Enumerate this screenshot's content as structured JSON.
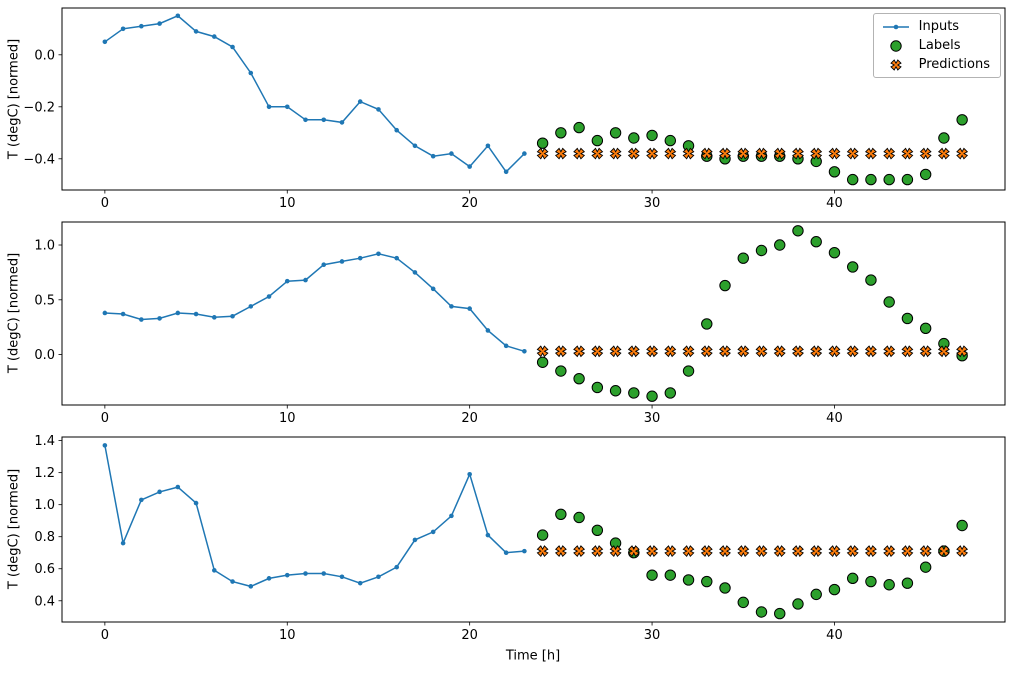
{
  "figure": {
    "background": "#ffffff",
    "xlabel": "Time [h]",
    "legend": {
      "items": [
        {
          "label": "Inputs"
        },
        {
          "label": "Labels"
        },
        {
          "label": "Predictions"
        }
      ]
    },
    "colors": {
      "inputs": "#1f77b4",
      "labels": "#2ca02c",
      "predictions": "#ff7f0e",
      "marker_edge": "#000000"
    }
  },
  "chart_data": [
    {
      "type": "line",
      "title": "",
      "ylabel": "T (degC) [normed]",
      "xlim": [
        -2.35,
        49.35
      ],
      "ylim": [
        -0.52,
        0.18
      ],
      "xticks": [
        0,
        10,
        20,
        30,
        40
      ],
      "yticks": [
        0.0,
        -0.2,
        -0.4
      ],
      "grid": false,
      "legend_position": "upper right",
      "series": [
        {
          "name": "Inputs",
          "style": "line",
          "color": "#1f77b4",
          "x": [
            0,
            1,
            2,
            3,
            4,
            5,
            6,
            7,
            8,
            9,
            10,
            11,
            12,
            13,
            14,
            15,
            16,
            17,
            18,
            19,
            20,
            21,
            22,
            23
          ],
          "y": [
            0.05,
            0.1,
            0.11,
            0.12,
            0.15,
            0.09,
            0.07,
            0.03,
            -0.07,
            -0.2,
            -0.2,
            -0.25,
            -0.25,
            -0.26,
            -0.18,
            -0.21,
            -0.29,
            -0.35,
            -0.39,
            -0.38,
            -0.43,
            -0.35,
            -0.45,
            -0.38
          ]
        },
        {
          "name": "Labels",
          "style": "circle",
          "color": "#2ca02c",
          "x": [
            24,
            25,
            26,
            27,
            28,
            29,
            30,
            31,
            32,
            33,
            34,
            35,
            36,
            37,
            38,
            39,
            40,
            41,
            42,
            43,
            44,
            45,
            46,
            47
          ],
          "y": [
            -0.34,
            -0.3,
            -0.28,
            -0.33,
            -0.3,
            -0.32,
            -0.31,
            -0.33,
            -0.35,
            -0.39,
            -0.4,
            -0.39,
            -0.39,
            -0.39,
            -0.4,
            -0.41,
            -0.45,
            -0.48,
            -0.48,
            -0.48,
            -0.48,
            -0.46,
            -0.32,
            -0.25
          ]
        },
        {
          "name": "Predictions",
          "style": "x",
          "color": "#ff7f0e",
          "x": [
            24,
            25,
            26,
            27,
            28,
            29,
            30,
            31,
            32,
            33,
            34,
            35,
            36,
            37,
            38,
            39,
            40,
            41,
            42,
            43,
            44,
            45,
            46,
            47
          ],
          "y": [
            -0.38,
            -0.38,
            -0.38,
            -0.38,
            -0.38,
            -0.38,
            -0.38,
            -0.38,
            -0.38,
            -0.38,
            -0.38,
            -0.38,
            -0.38,
            -0.38,
            -0.38,
            -0.38,
            -0.38,
            -0.38,
            -0.38,
            -0.38,
            -0.38,
            -0.38,
            -0.38,
            -0.38
          ]
        }
      ]
    },
    {
      "type": "line",
      "title": "",
      "ylabel": "T (degC) [normed]",
      "xlim": [
        -2.35,
        49.35
      ],
      "ylim": [
        -0.46,
        1.21
      ],
      "xticks": [
        0,
        10,
        20,
        30,
        40
      ],
      "yticks": [
        0.0,
        0.5,
        1.0
      ],
      "grid": false,
      "series": [
        {
          "name": "Inputs",
          "style": "line",
          "color": "#1f77b4",
          "x": [
            0,
            1,
            2,
            3,
            4,
            5,
            6,
            7,
            8,
            9,
            10,
            11,
            12,
            13,
            14,
            15,
            16,
            17,
            18,
            19,
            20,
            21,
            22,
            23
          ],
          "y": [
            0.38,
            0.37,
            0.32,
            0.33,
            0.38,
            0.37,
            0.34,
            0.35,
            0.44,
            0.53,
            0.67,
            0.68,
            0.82,
            0.85,
            0.88,
            0.92,
            0.88,
            0.75,
            0.6,
            0.44,
            0.42,
            0.22,
            0.08,
            0.03
          ]
        },
        {
          "name": "Labels",
          "style": "circle",
          "color": "#2ca02c",
          "x": [
            24,
            25,
            26,
            27,
            28,
            29,
            30,
            31,
            32,
            33,
            34,
            35,
            36,
            37,
            38,
            39,
            40,
            41,
            42,
            43,
            44,
            45,
            46,
            47
          ],
          "y": [
            -0.07,
            -0.15,
            -0.22,
            -0.3,
            -0.33,
            -0.35,
            -0.38,
            -0.35,
            -0.15,
            0.28,
            0.63,
            0.88,
            0.95,
            1.0,
            1.13,
            1.03,
            0.93,
            0.8,
            0.68,
            0.48,
            0.33,
            0.24,
            0.1,
            -0.01
          ]
        },
        {
          "name": "Predictions",
          "style": "x",
          "color": "#ff7f0e",
          "x": [
            24,
            25,
            26,
            27,
            28,
            29,
            30,
            31,
            32,
            33,
            34,
            35,
            36,
            37,
            38,
            39,
            40,
            41,
            42,
            43,
            44,
            45,
            46,
            47
          ],
          "y": [
            0.03,
            0.03,
            0.03,
            0.03,
            0.03,
            0.03,
            0.03,
            0.03,
            0.03,
            0.03,
            0.03,
            0.03,
            0.03,
            0.03,
            0.03,
            0.03,
            0.03,
            0.03,
            0.03,
            0.03,
            0.03,
            0.03,
            0.03,
            0.03
          ]
        }
      ]
    },
    {
      "type": "line",
      "title": "",
      "xlabel": "Time [h]",
      "ylabel": "T (degC) [normed]",
      "xlim": [
        -2.35,
        49.35
      ],
      "ylim": [
        0.2675,
        1.4225
      ],
      "xticks": [
        0,
        10,
        20,
        30,
        40
      ],
      "yticks": [
        0.4,
        0.6,
        0.8,
        1.0,
        1.2,
        1.4
      ],
      "grid": false,
      "series": [
        {
          "name": "Inputs",
          "style": "line",
          "color": "#1f77b4",
          "x": [
            0,
            1,
            2,
            3,
            4,
            5,
            6,
            7,
            8,
            9,
            10,
            11,
            12,
            13,
            14,
            15,
            16,
            17,
            18,
            19,
            20,
            21,
            22,
            23
          ],
          "y": [
            1.37,
            0.76,
            1.03,
            1.08,
            1.11,
            1.01,
            0.59,
            0.52,
            0.49,
            0.54,
            0.56,
            0.57,
            0.57,
            0.55,
            0.51,
            0.55,
            0.61,
            0.78,
            0.83,
            0.93,
            1.19,
            0.81,
            0.7,
            0.71
          ]
        },
        {
          "name": "Labels",
          "style": "circle",
          "color": "#2ca02c",
          "x": [
            24,
            25,
            26,
            27,
            28,
            29,
            30,
            31,
            32,
            33,
            34,
            35,
            36,
            37,
            38,
            39,
            40,
            41,
            42,
            43,
            44,
            45,
            46,
            47
          ],
          "y": [
            0.81,
            0.94,
            0.92,
            0.84,
            0.76,
            0.7,
            0.56,
            0.56,
            0.53,
            0.52,
            0.48,
            0.39,
            0.33,
            0.32,
            0.38,
            0.44,
            0.47,
            0.54,
            0.52,
            0.5,
            0.51,
            0.61,
            0.71,
            0.87
          ]
        },
        {
          "name": "Predictions",
          "style": "x",
          "color": "#ff7f0e",
          "x": [
            24,
            25,
            26,
            27,
            28,
            29,
            30,
            31,
            32,
            33,
            34,
            35,
            36,
            37,
            38,
            39,
            40,
            41,
            42,
            43,
            44,
            45,
            46,
            47
          ],
          "y": [
            0.71,
            0.71,
            0.71,
            0.71,
            0.71,
            0.71,
            0.71,
            0.71,
            0.71,
            0.71,
            0.71,
            0.71,
            0.71,
            0.71,
            0.71,
            0.71,
            0.71,
            0.71,
            0.71,
            0.71,
            0.71,
            0.71,
            0.71,
            0.71
          ]
        }
      ]
    }
  ]
}
